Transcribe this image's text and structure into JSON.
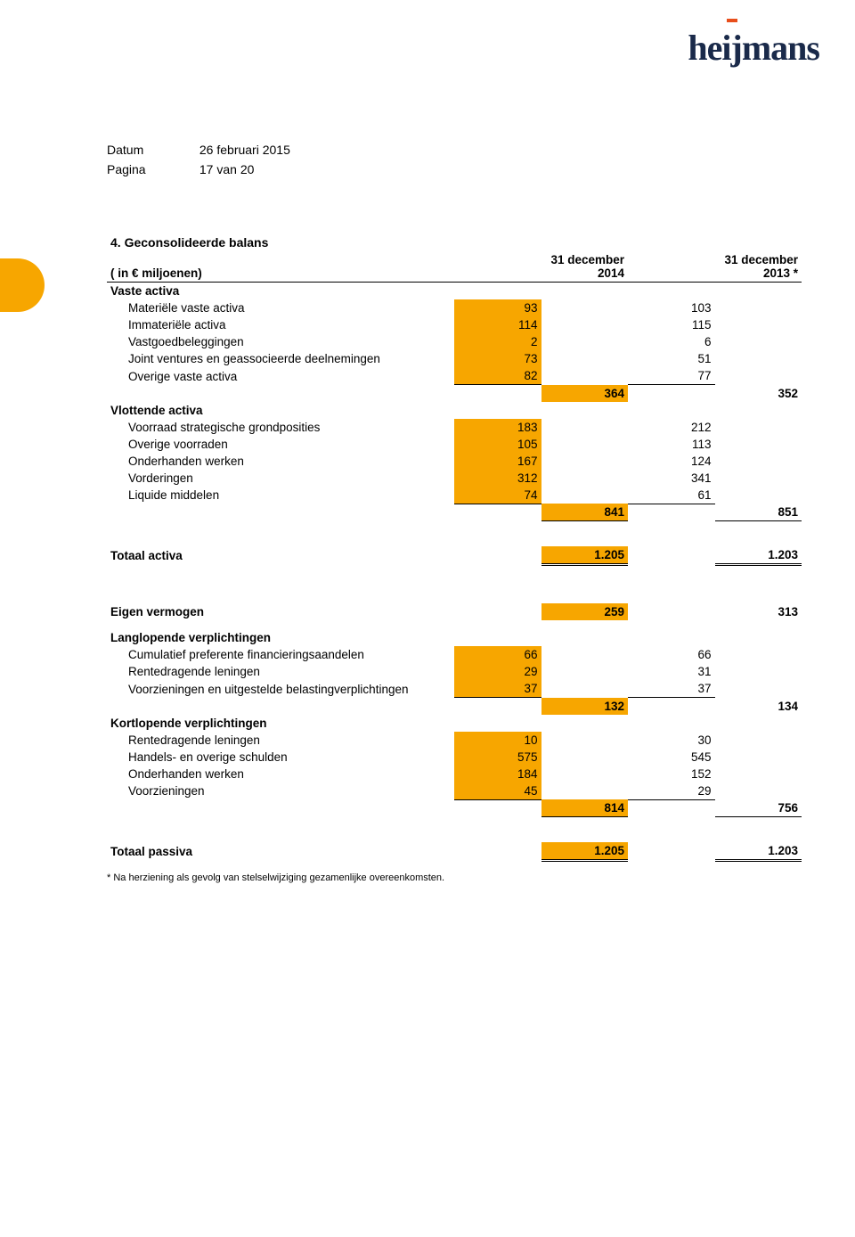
{
  "meta": {
    "date_label": "Datum",
    "date_value": "26 februari 2015",
    "page_label": "Pagina",
    "page_value": "17 van 20"
  },
  "logo_text": "heijmans",
  "title": "4. Geconsolideerde balans",
  "units": "( in € miljoenen)",
  "col_headers": {
    "c1": "31 december 2014",
    "c2": "31 december 2013 *"
  },
  "vaste_activa": {
    "heading": "Vaste activa",
    "rows": [
      {
        "label": "Materiële vaste activa",
        "v1": "93",
        "v2": "103"
      },
      {
        "label": "Immateriële activa",
        "v1": "114",
        "v2": "115"
      },
      {
        "label": "Vastgoedbeleggingen",
        "v1": "2",
        "v2": "6"
      },
      {
        "label": "Joint ventures en geassocieerde deelnemingen",
        "v1": "73",
        "v2": "51"
      },
      {
        "label": "Overige vaste activa",
        "v1": "82",
        "v2": "77"
      }
    ],
    "subtotal": {
      "s1": "364",
      "s2": "352"
    }
  },
  "vlottende_activa": {
    "heading": "Vlottende activa",
    "rows": [
      {
        "label": "Voorraad strategische grondposities",
        "v1": "183",
        "v2": "212"
      },
      {
        "label": "Overige voorraden",
        "v1": "105",
        "v2": "113"
      },
      {
        "label": "Onderhanden werken",
        "v1": "167",
        "v2": "124"
      },
      {
        "label": "Vorderingen",
        "v1": "312",
        "v2": "341"
      },
      {
        "label": "Liquide middelen",
        "v1": "74",
        "v2": "61"
      }
    ],
    "subtotal": {
      "s1": "841",
      "s2": "851"
    }
  },
  "totaal_activa": {
    "label": "Totaal activa",
    "s1": "1.205",
    "s2": "1.203"
  },
  "eigen_vermogen": {
    "label": "Eigen vermogen",
    "s1": "259",
    "s2": "313"
  },
  "langlopende": {
    "heading": "Langlopende verplichtingen",
    "rows": [
      {
        "label": "Cumulatief preferente financieringsaandelen",
        "v1": "66",
        "v2": "66"
      },
      {
        "label": "Rentedragende leningen",
        "v1": "29",
        "v2": "31"
      },
      {
        "label": "Voorzieningen en uitgestelde belastingverplichtingen",
        "v1": "37",
        "v2": "37"
      }
    ],
    "subtotal": {
      "s1": "132",
      "s2": "134"
    }
  },
  "kortlopende": {
    "heading": "Kortlopende verplichtingen",
    "rows": [
      {
        "label": "Rentedragende leningen",
        "v1": "10",
        "v2": "30"
      },
      {
        "label": "Handels- en overige schulden",
        "v1": "575",
        "v2": "545"
      },
      {
        "label": "Onderhanden werken",
        "v1": "184",
        "v2": "152"
      },
      {
        "label": "Voorzieningen",
        "v1": "45",
        "v2": "29"
      }
    ],
    "subtotal": {
      "s1": "814",
      "s2": "756"
    }
  },
  "totaal_passiva": {
    "label": "Totaal passiva",
    "s1": "1.205",
    "s2": "1.203"
  },
  "footnote": "* Na herziening als gevolg van stelselwijziging gezamenlijke overeenkomsten."
}
